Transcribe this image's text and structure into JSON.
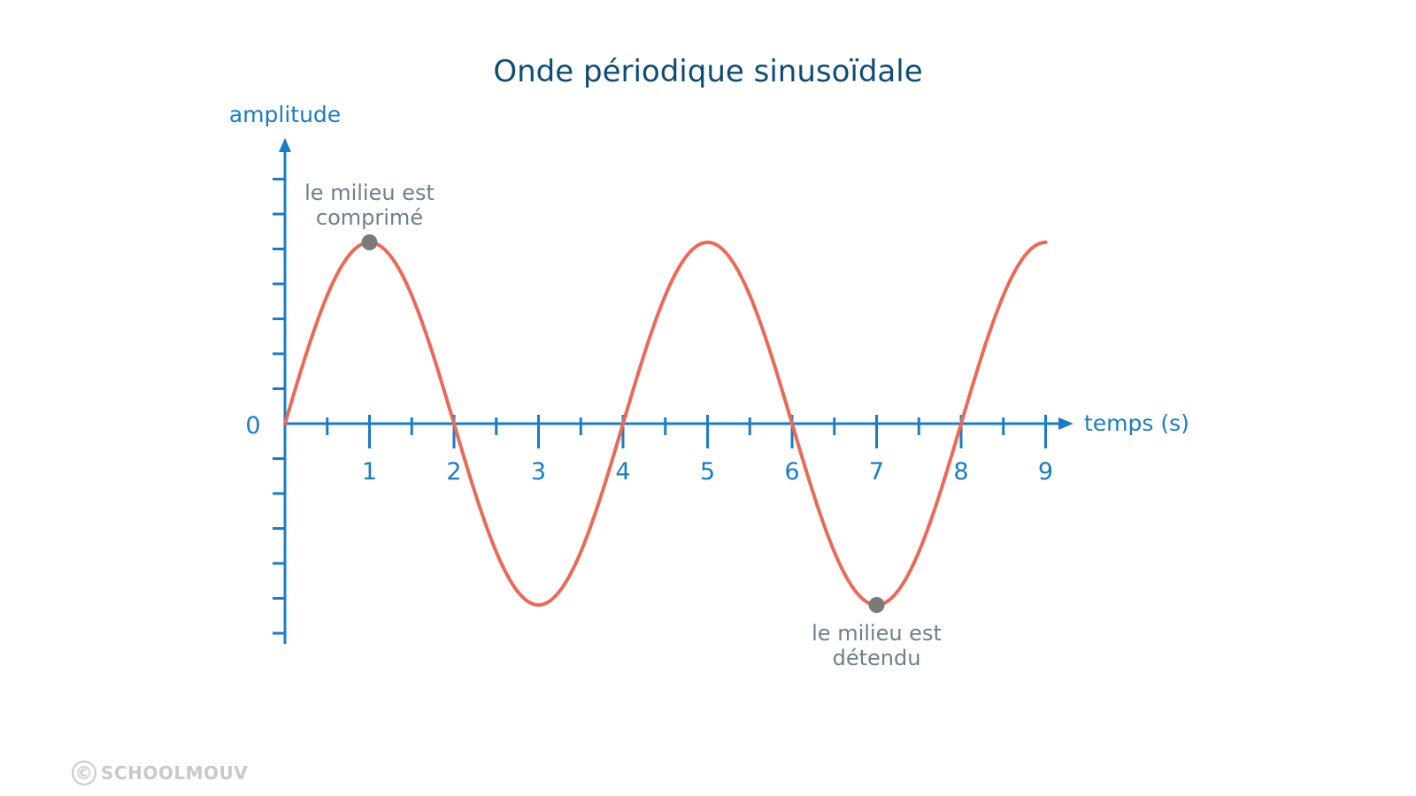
{
  "chart_data": {
    "type": "line",
    "title": "Onde périodique sinusoïdale",
    "xlabel": "temps (s)",
    "ylabel": "amplitude",
    "xlim": [
      0,
      9
    ],
    "x_ticks": [
      1,
      2,
      3,
      4,
      5,
      6,
      7,
      8,
      9
    ],
    "y_zero_label": "0",
    "grid": false,
    "period_s": 4,
    "series": [
      {
        "x": [
          0,
          0.5,
          1,
          1.5,
          2,
          2.5,
          3,
          3.5,
          4,
          4.5,
          5,
          5.5,
          6,
          6.5,
          7,
          7.5,
          8,
          8.5,
          9
        ],
        "y": [
          0,
          0.71,
          1,
          0.71,
          0,
          -0.71,
          -1,
          -0.71,
          0,
          0.71,
          1,
          0.71,
          0,
          -0.71,
          -1,
          -0.71,
          0,
          0.71,
          1
        ],
        "color": "#ea6a5a"
      }
    ],
    "annotations": [
      {
        "x": 1,
        "y": 1,
        "text_lines": [
          "le milieu est",
          "comprimé"
        ],
        "position": "above"
      },
      {
        "x": 7,
        "y": -1,
        "text_lines": [
          "le milieu est",
          "détendu"
        ],
        "position": "below"
      }
    ]
  },
  "colors": {
    "title": "#0f4c75",
    "axis": "#1b7cc4",
    "curve": "#ea6a5a",
    "marker": "#7a7a7a",
    "annotation_text": "#6e7f8c",
    "watermark": "#c9c9c9"
  },
  "watermark": {
    "symbol": "©",
    "text": "SCHOOLMOUV"
  }
}
